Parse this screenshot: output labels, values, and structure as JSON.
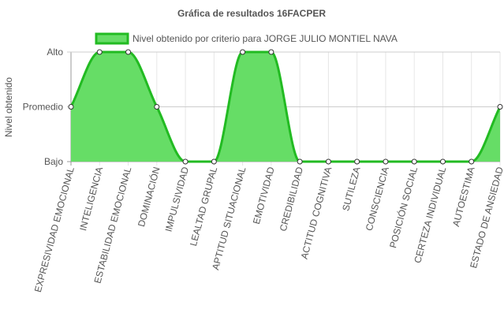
{
  "chart_data": {
    "type": "area",
    "title": "Gráfica de resultados 16FACPER",
    "ylabel": "Nivel obtenido",
    "xlabel": "",
    "y_levels": [
      "Bajo",
      "Promedio",
      "Alto"
    ],
    "ylim": [
      0,
      2
    ],
    "categories": [
      "EXPRESIVIDAD EMOCIONAL",
      "INTELIGENCIA",
      "ESTABILIDAD EMOCIONAL",
      "DOMINACIÓN",
      "IMPULSIVIDAD",
      "LEALTAD GRUPAL",
      "APTITUD SITUACIONAL",
      "EMOTIVIDAD",
      "CREDIBILIDAD",
      "ACTITUD COGNITIVA",
      "SUTILEZA",
      "CONSCIENCIA",
      "POSICIÓN SOCIAL",
      "CERTEZA INDIVIDUAL",
      "AUTOESTIMA",
      "ESTADO DE ANSIEDAD"
    ],
    "series": [
      {
        "name": "Nivel obtenido por criterio para JORGE JULIO MONTIEL NAVA",
        "values": [
          1,
          2,
          2,
          1,
          0,
          0,
          2,
          2,
          0,
          0,
          0,
          0,
          0,
          0,
          0,
          1
        ],
        "fill_color": "#66dd66",
        "line_color": "#22bb22"
      }
    ],
    "grid": true,
    "legend_position": "top"
  }
}
